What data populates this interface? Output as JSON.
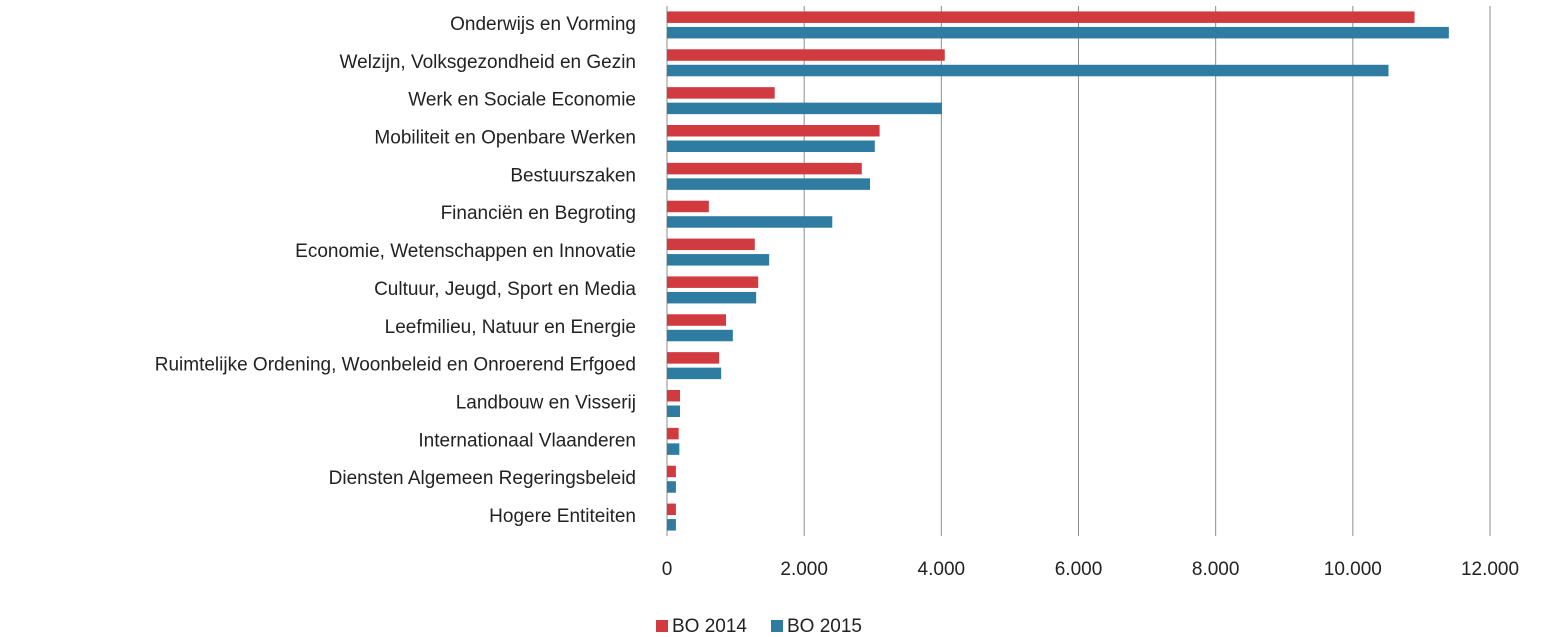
{
  "chart_data": {
    "type": "hbar",
    "categories": [
      "Onderwijs en Vorming",
      "Welzijn, Volksgezondheid en Gezin",
      "Werk en Sociale Economie",
      "Mobiliteit en Openbare Werken",
      "Bestuurszaken",
      "Financiën en Begroting",
      "Economie, Wetenschappen en Innovatie",
      "Cultuur, Jeugd, Sport en Media",
      "Leefmilieu, Natuur en Energie",
      "Ruimtelijke Ordening, Woonbeleid en Onroerend Erfgoed",
      "Landbouw en Visserij",
      "Internationaal Vlaanderen",
      "Diensten Algemeen Regeringsbeleid",
      "Hogere Entiteiten"
    ],
    "series": [
      {
        "name": "BO 2014",
        "color": "#d13b40",
        "values": [
          10900,
          4050,
          1570,
          3100,
          2840,
          610,
          1280,
          1330,
          860,
          760,
          190,
          170,
          130,
          130
        ]
      },
      {
        "name": "BO 2015",
        "color": "#2e7ca2",
        "values": [
          11400,
          10520,
          4010,
          3030,
          2960,
          2410,
          1490,
          1300,
          960,
          790,
          190,
          180,
          130,
          130
        ]
      }
    ],
    "xlim": [
      0,
      12000
    ],
    "xticks": [
      0,
      {
        "value": 2000,
        "label": "2.000"
      },
      {
        "value": 4000,
        "label": "4.000"
      },
      {
        "value": 6000,
        "label": "6.000"
      },
      {
        "value": 8000,
        "label": "8.000"
      },
      {
        "value": 10000,
        "label": "10.000"
      },
      {
        "value": 12000,
        "label": "12.000"
      }
    ],
    "grid": true,
    "legend": "bottom"
  }
}
